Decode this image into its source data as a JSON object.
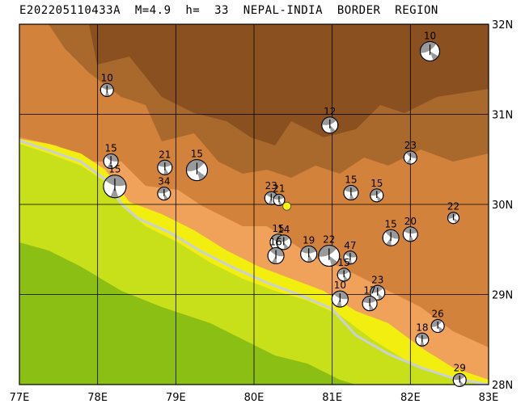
{
  "title": "E202205110433A  M=4.9  h=  33  NEPAL-INDIA  BORDER  REGION",
  "map": {
    "lon_range": [
      77,
      83
    ],
    "lat_range": [
      28,
      32
    ],
    "lon_ticks": [
      "77E",
      "78E",
      "79E",
      "80E",
      "81E",
      "82E",
      "83E"
    ],
    "lat_ticks": [
      "32N",
      "31N",
      "30N",
      "29N",
      "28N"
    ],
    "grid": true,
    "colors": {
      "plain_green": "#c8e01a",
      "deep_green": "#8cbf14",
      "lowland_yellow": "#f2ee10",
      "foothill_orange": "#f0a25a",
      "mid_brown": "#d2823a",
      "high_brown": "#a9692c",
      "peak_brown": "#8a5020",
      "river": "#c8d0d8",
      "epicenter": "#ffff00"
    }
  },
  "epicenter": {
    "lon": 80.42,
    "lat": 29.98
  },
  "mechanisms": [
    {
      "lon": 82.25,
      "lat": 31.7,
      "depth": "10",
      "r": 12
    },
    {
      "lon": 78.12,
      "lat": 31.27,
      "depth": "10",
      "r": 8
    },
    {
      "lon": 80.97,
      "lat": 30.88,
      "depth": "12",
      "r": 10
    },
    {
      "lon": 78.17,
      "lat": 30.48,
      "depth": "15",
      "r": 9
    },
    {
      "lon": 78.86,
      "lat": 30.41,
      "depth": "21",
      "r": 9
    },
    {
      "lon": 79.27,
      "lat": 30.38,
      "depth": "15",
      "r": 13
    },
    {
      "lon": 78.22,
      "lat": 30.2,
      "depth": "15",
      "r": 14
    },
    {
      "lon": 78.85,
      "lat": 30.12,
      "depth": "34",
      "r": 8
    },
    {
      "lon": 82.0,
      "lat": 30.52,
      "depth": "23",
      "r": 8
    },
    {
      "lon": 81.24,
      "lat": 30.13,
      "depth": "15",
      "r": 9
    },
    {
      "lon": 81.57,
      "lat": 30.1,
      "depth": "15",
      "r": 8
    },
    {
      "lon": 80.22,
      "lat": 30.07,
      "depth": "23",
      "r": 8
    },
    {
      "lon": 80.32,
      "lat": 30.05,
      "depth": "21",
      "r": 7
    },
    {
      "lon": 82.55,
      "lat": 29.85,
      "depth": "22",
      "r": 7
    },
    {
      "lon": 80.31,
      "lat": 29.58,
      "depth": "15",
      "r": 10
    },
    {
      "lon": 80.38,
      "lat": 29.58,
      "depth": "14",
      "r": 9
    },
    {
      "lon": 80.28,
      "lat": 29.43,
      "depth": "16",
      "r": 10
    },
    {
      "lon": 80.7,
      "lat": 29.45,
      "depth": "19",
      "r": 10
    },
    {
      "lon": 80.96,
      "lat": 29.43,
      "depth": "22",
      "r": 13
    },
    {
      "lon": 81.23,
      "lat": 29.41,
      "depth": "47",
      "r": 8
    },
    {
      "lon": 81.15,
      "lat": 29.22,
      "depth": "15",
      "r": 8
    },
    {
      "lon": 81.75,
      "lat": 29.63,
      "depth": "15",
      "r": 10
    },
    {
      "lon": 82.0,
      "lat": 29.67,
      "depth": "20",
      "r": 9
    },
    {
      "lon": 81.58,
      "lat": 29.02,
      "depth": "23",
      "r": 9
    },
    {
      "lon": 81.1,
      "lat": 28.95,
      "depth": "10",
      "r": 10
    },
    {
      "lon": 81.48,
      "lat": 28.9,
      "depth": "17",
      "r": 9
    },
    {
      "lon": 82.35,
      "lat": 28.65,
      "depth": "26",
      "r": 8
    },
    {
      "lon": 82.15,
      "lat": 28.5,
      "depth": "18",
      "r": 8
    },
    {
      "lon": 82.63,
      "lat": 28.05,
      "depth": "29",
      "r": 8
    }
  ]
}
